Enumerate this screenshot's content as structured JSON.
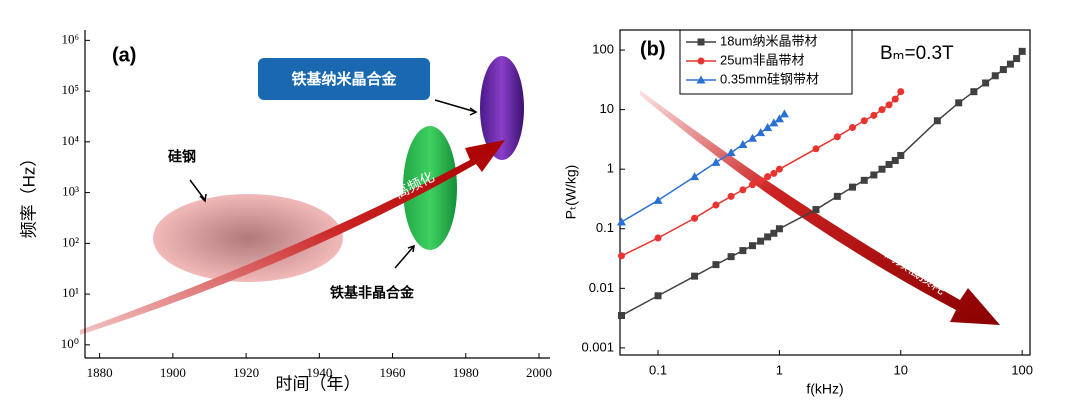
{
  "chart_data": [
    {
      "type": "timeline",
      "xlabel": "时间（年）",
      "ylabel": "频率（Hz）",
      "xlim": [
        1876,
        2003
      ],
      "xticks": [
        1880,
        1900,
        1920,
        1940,
        1960,
        1980,
        2000
      ],
      "ylim": [
        0.55,
        1600000
      ],
      "yscale": "log",
      "yticks": [
        {
          "value": 1,
          "label": "10⁰"
        },
        {
          "value": 10,
          "label": "10¹"
        },
        {
          "value": 100,
          "label": "10²"
        },
        {
          "value": 1000,
          "label": "10³"
        },
        {
          "value": 10000,
          "label": "10⁴"
        },
        {
          "value": 100000,
          "label": "10⁵"
        },
        {
          "value": 1000000,
          "label": "10⁶"
        }
      ],
      "annotations": [
        "(a)",
        "硅钢",
        "铁基非晶合金",
        "铁基纳米晶合金",
        "高频化"
      ]
    },
    {
      "type": "line",
      "xlabel": "f(kHz)",
      "ylabel": "Pₜ(W/kg)",
      "xscale": "log",
      "yscale": "log",
      "xlim": [
        0.0486,
        116
      ],
      "xticks": [
        0.1,
        1,
        10,
        100
      ],
      "ylim": [
        0.00076,
        217
      ],
      "yticks": [
        0.001,
        0.01,
        0.1,
        1,
        10,
        100
      ],
      "annotations": [
        "(b)",
        "Bₘ=0.3T",
        "高频低损耗"
      ],
      "series": [
        {
          "name": "18um纳米晶带材",
          "color": "#404040",
          "marker": "square",
          "x": [
            0.05,
            0.1,
            0.2,
            0.3,
            0.4,
            0.5,
            0.6,
            0.7,
            0.8,
            0.9,
            1,
            2,
            3,
            4,
            5,
            6,
            7,
            8,
            9,
            10,
            20,
            30,
            40,
            50,
            60,
            70,
            80,
            90,
            100
          ],
          "values": [
            0.0035,
            0.0075,
            0.016,
            0.025,
            0.034,
            0.043,
            0.052,
            0.062,
            0.073,
            0.084,
            0.1,
            0.21,
            0.35,
            0.5,
            0.65,
            0.8,
            1.0,
            1.2,
            1.4,
            1.7,
            6.5,
            13,
            20,
            28,
            37,
            47,
            58,
            72,
            95
          ]
        },
        {
          "name": "25um非晶带材",
          "color": "#e8332f",
          "marker": "circle",
          "x": [
            0.05,
            0.1,
            0.2,
            0.3,
            0.4,
            0.5,
            0.6,
            0.7,
            0.8,
            0.9,
            1,
            2,
            3,
            4,
            5,
            6,
            7,
            8,
            9,
            10
          ],
          "values": [
            0.035,
            0.07,
            0.15,
            0.25,
            0.35,
            0.45,
            0.55,
            0.65,
            0.75,
            0.85,
            1.0,
            2.2,
            3.5,
            5,
            6.5,
            8,
            10,
            12,
            15,
            20
          ]
        },
        {
          "name": "0.35mm硅钢带材",
          "color": "#2a6fd6",
          "marker": "triangle",
          "x": [
            0.05,
            0.1,
            0.2,
            0.3,
            0.4,
            0.5,
            0.6,
            0.7,
            0.8,
            0.9,
            1,
            1.1
          ],
          "values": [
            0.13,
            0.3,
            0.75,
            1.3,
            1.9,
            2.6,
            3.3,
            4.1,
            5,
            6,
            7,
            8.5
          ]
        }
      ]
    }
  ]
}
